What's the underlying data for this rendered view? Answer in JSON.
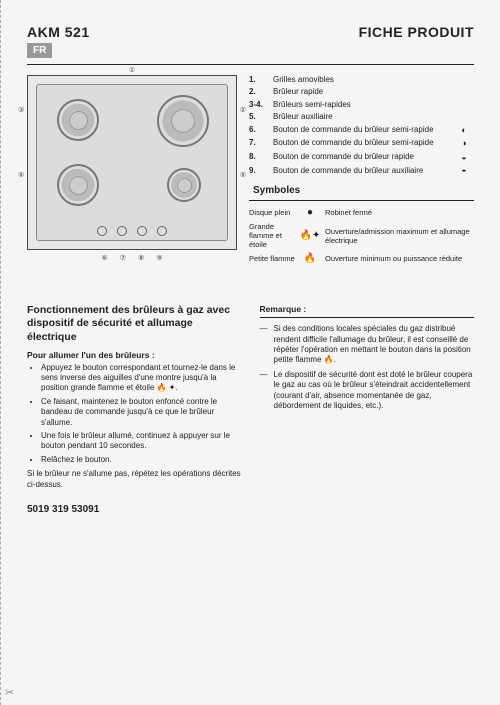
{
  "header": {
    "model": "AKM 521",
    "doc_title": "FICHE PRODUIT",
    "lang_badge": "FR"
  },
  "diagram": {
    "callouts": {
      "top": "①",
      "left1": "③",
      "left2": "④",
      "right1": "②",
      "right2": "⑤"
    },
    "bottom_nums": [
      "⑥",
      "⑦",
      "⑧",
      "⑨"
    ]
  },
  "legend": [
    {
      "num": "1.",
      "txt": "Grilles amovibles",
      "ico": ""
    },
    {
      "num": "2.",
      "txt": "Brûleur rapide",
      "ico": ""
    },
    {
      "num": "3-4.",
      "txt": "Brûleurs semi-rapides",
      "ico": ""
    },
    {
      "num": "5.",
      "txt": "Brûleur auxiliaire",
      "ico": ""
    },
    {
      "num": "6.",
      "txt": "Bouton de commande du brûleur semi-rapide",
      "ico": "◐"
    },
    {
      "num": "7.",
      "txt": "Bouton de commande du brûleur semi-rapide",
      "ico": "◑"
    },
    {
      "num": "8.",
      "txt": "Bouton de commande du brûleur rapide",
      "ico": "◒"
    },
    {
      "num": "9.",
      "txt": "Bouton de commande du brûleur auxiliaire",
      "ico": "◓"
    }
  ],
  "symbols": {
    "heading": "Symboles",
    "rows": [
      {
        "c1": "Disque plein",
        "c2": "●",
        "c3": "Robinet fermé"
      },
      {
        "c1": "Grande flamme et étoile",
        "c2": "🔥✦",
        "c3": "Ouverture/admission maximum et allumage électrique"
      },
      {
        "c1": "Petite flamme",
        "c2": "🔥",
        "c3": "Ouverture minimum ou puissance réduite"
      }
    ]
  },
  "left_col": {
    "title": "Fonctionnement des brûleurs à gaz avec dispositif de sécurité et allumage électrique",
    "subhead": "Pour allumer l'un des brûleurs :",
    "bullets": [
      "Appuyez le bouton correspondant et tournez-le dans le sens inverse des aiguilles d'une montre jusqu'à la position grande flamme et étoile 🔥 ✦.",
      "Ce faisant, maintenez le bouton enfoncé contre le bandeau de commande jusqu'à ce que le brûleur s'allume.",
      "Une fois le brûleur allumé, continuez à appuyer sur le bouton pendant 10 secondes.",
      "Relâchez le bouton."
    ],
    "note": "Si le brûleur ne s'allume pas, répétez les opérations décrites ci-dessus."
  },
  "right_col": {
    "title": "Remarque :",
    "items": [
      "Si des conditions locales spéciales du gaz distribué  rendent difficile l'allumage du brûleur, il est conseillé de répéter l'opération en mettant le bouton dans la position petite flamme 🔥.",
      "Le dispositif de sécurité dont est doté le brûleur coupera le gaz au cas où le brûleur s'éteindrait accidentellement (courant d'air, absence momentanée de gaz, débordement de liquides, etc.)."
    ]
  },
  "footer_code": "5019 319 53091",
  "colors": {
    "badge_bg": "#999999",
    "text": "#222222",
    "page_bg": "#f5f5f5"
  }
}
